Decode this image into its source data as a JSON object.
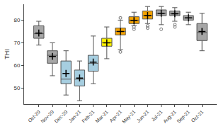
{
  "chart_data": {
    "type": "box",
    "y_label": "THI",
    "categories": [
      "Oct-20",
      "Nov-20",
      "Dec-20",
      "Jan-21",
      "Feb-21",
      "Mar-21",
      "Apr-21",
      "May-21",
      "Jun-21",
      "Jul-21",
      "Aug-21",
      "Sep-21",
      "Oct-21"
    ],
    "boxes": [
      {
        "min": 69,
        "q1": 72,
        "median": 74,
        "q3": 77.5,
        "max": 79.5,
        "mean": 74.3,
        "outliers": []
      },
      {
        "min": 55.5,
        "q1": 61,
        "median": 64.5,
        "q3": 66.5,
        "max": 70,
        "mean": 64,
        "outliers": []
      },
      {
        "min": 47,
        "q1": 52,
        "median": 54,
        "q3": 62,
        "max": 66.5,
        "mean": 56.5,
        "outliers": []
      },
      {
        "min": 44.5,
        "q1": 51,
        "median": 54,
        "q3": 58,
        "max": 62,
        "mean": 54.5,
        "outliers": []
      },
      {
        "min": 52,
        "q1": 57.5,
        "median": 61,
        "q3": 64.5,
        "max": 73,
        "mean": 61.5,
        "outliers": []
      },
      {
        "min": 63,
        "q1": 68.5,
        "median": 70,
        "q3": 72,
        "max": 77,
        "mean": 70,
        "outliers": []
      },
      {
        "min": 67,
        "q1": 73.5,
        "median": 75,
        "q3": 76.5,
        "max": 80,
        "mean": 75,
        "outliers": [
          66,
          81
        ]
      },
      {
        "min": 77.5,
        "q1": 78.5,
        "median": 80,
        "q3": 81.5,
        "max": 83.5,
        "mean": 79.8,
        "outliers": [
          76,
          77
        ]
      },
      {
        "min": 78.5,
        "q1": 80.5,
        "median": 82,
        "q3": 84,
        "max": 86,
        "mean": 82,
        "outliers": [
          76.5,
          77.5
        ]
      },
      {
        "min": 78,
        "q1": 82,
        "median": 83,
        "q3": 84.5,
        "max": 86,
        "mean": 83,
        "outliers": [
          76
        ]
      },
      {
        "min": 79.5,
        "q1": 82,
        "median": 83,
        "q3": 84,
        "max": 85.5,
        "mean": 82.8,
        "outliers": [
          77,
          78
        ]
      },
      {
        "min": 78,
        "q1": 80,
        "median": 81,
        "q3": 82,
        "max": 83.5,
        "mean": 81,
        "outliers": []
      },
      {
        "min": 66.5,
        "q1": 71,
        "median": 74.5,
        "q3": 78.5,
        "max": 83,
        "mean": 75,
        "outliers": []
      }
    ],
    "colors": [
      "#a6a6a6",
      "#a6a6a6",
      "#a6cee0",
      "#a6cee0",
      "#a6cee0",
      "#fff200",
      "#f5a300",
      "#f5a300",
      "#f5a300",
      "#a6a6a6",
      "#a6a6a6",
      "#a6a6a6",
      "#a6a6a6"
    ],
    "ylim": [
      43,
      87
    ],
    "yticks": [
      50,
      60,
      70,
      80
    ],
    "grid": false
  }
}
